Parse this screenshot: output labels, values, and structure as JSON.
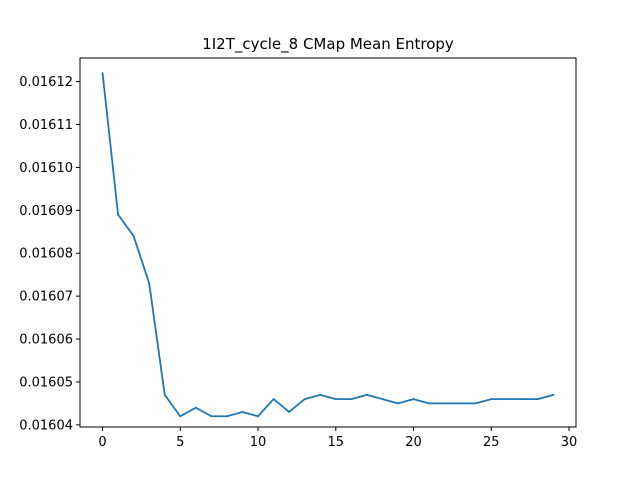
{
  "chart_data": {
    "type": "line",
    "title": "1I2T_cycle_8 CMap Mean Entropy",
    "xlabel": "",
    "ylabel": "",
    "xlim": [
      -1.45,
      30.45
    ],
    "ylim": [
      0.0160395,
      0.0161255
    ],
    "x_ticks": [
      0,
      5,
      10,
      15,
      20,
      25,
      30
    ],
    "y_ticks": [
      0.01604,
      0.01605,
      0.01606,
      0.01607,
      0.01608,
      0.01609,
      0.0161,
      0.01611,
      0.01612
    ],
    "y_tick_labels": [
      "0.01604",
      "0.01605",
      "0.01606",
      "0.01607",
      "0.01608",
      "0.01609",
      "0.01610",
      "0.01611",
      "0.01612"
    ],
    "grid": false,
    "series": [
      {
        "color": "#1f77b4",
        "x": [
          0,
          1,
          2,
          3,
          4,
          5,
          6,
          7,
          8,
          9,
          10,
          11,
          12,
          13,
          14,
          15,
          16,
          17,
          18,
          19,
          20,
          21,
          22,
          23,
          24,
          25,
          26,
          27,
          28,
          29
        ],
        "y": [
          0.016122,
          0.016089,
          0.016084,
          0.016073,
          0.016047,
          0.016042,
          0.016044,
          0.016042,
          0.016042,
          0.016043,
          0.016042,
          0.016046,
          0.016043,
          0.016046,
          0.016047,
          0.016046,
          0.016046,
          0.016047,
          0.016046,
          0.016045,
          0.016046,
          0.016045,
          0.016045,
          0.016045,
          0.016045,
          0.016046,
          0.016046,
          0.016046,
          0.016046,
          0.016047
        ]
      }
    ]
  }
}
